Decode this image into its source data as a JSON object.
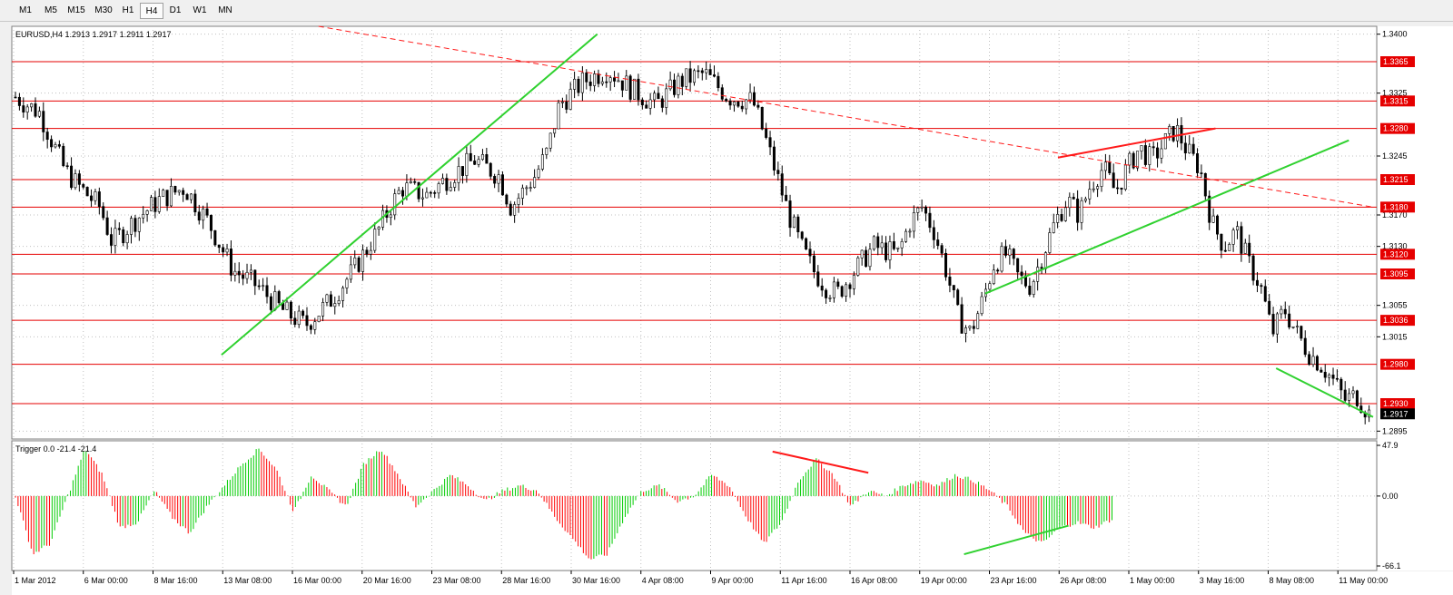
{
  "toolbar": {
    "timeframes": [
      "M1",
      "M5",
      "M15",
      "M30",
      "H1",
      "H4",
      "D1",
      "W1",
      "MN"
    ],
    "active": "H4"
  },
  "main_header": "EURUSD,H4  1.2913 1.2917 1.2911 1.2917",
  "indicator_header": "Trigger 0.0 -21.4 -21.4",
  "colors": {
    "background": "#ffffff",
    "grid": "#c0c0c0",
    "level_line": "#e60000",
    "trend_green": "#2fd12f",
    "trend_red": "#ff1a1a",
    "candle": "#000000",
    "hist_green": "#00cc00",
    "hist_red": "#ff0000",
    "last_price_bg": "#000000"
  },
  "chart_data": [
    {
      "type": "candlestick",
      "symbol": "EURUSD",
      "timeframe": "H4",
      "ohlc_header": [
        1.2913,
        1.2917,
        1.2911,
        1.2917
      ],
      "ylim": [
        1.2885,
        1.341
      ],
      "y_ticks": [
        1.34,
        1.3325,
        1.3245,
        1.317,
        1.313,
        1.3055,
        1.3015,
        1.2895
      ],
      "x_tick_labels": [
        "1 Mar 2012",
        "6 Mar 00:00",
        "8 Mar 16:00",
        "13 Mar 08:00",
        "16 Mar 00:00",
        "20 Mar 16:00",
        "23 Mar 08:00",
        "28 Mar 16:00",
        "30 Mar 16:00",
        "4 Apr 08:00",
        "9 Apr 00:00",
        "11 Apr 16:00",
        "16 Apr 08:00",
        "19 Apr 00:00",
        "23 Apr 16:00",
        "26 Apr 08:00",
        "1 May 00:00",
        "3 May 16:00",
        "8 May 08:00",
        "11 May 00:00"
      ],
      "horizontal_levels": [
        "1.3365",
        "1.3315",
        "1.3280",
        "1.3215",
        "1.3180",
        "1.3120",
        "1.3095",
        "1.3036",
        "1.2980",
        "1.2930"
      ],
      "last_price": "1.2917",
      "close_path": [
        [
          0,
          1.332
        ],
        [
          2,
          1.33
        ],
        [
          4,
          1.323
        ],
        [
          5,
          1.321
        ],
        [
          7,
          1.318
        ],
        [
          8,
          1.3135
        ],
        [
          10,
          1.3165
        ],
        [
          12,
          1.319
        ],
        [
          14,
          1.3205
        ],
        [
          16,
          1.316
        ],
        [
          18,
          1.31
        ],
        [
          20,
          1.308
        ],
        [
          22,
          1.305
        ],
        [
          24,
          1.303
        ],
        [
          26,
          1.306
        ],
        [
          28,
          1.31
        ],
        [
          30,
          1.315
        ],
        [
          31,
          1.318
        ],
        [
          32,
          1.3205
        ],
        [
          34,
          1.3195
        ],
        [
          36,
          1.322
        ],
        [
          38,
          1.324
        ],
        [
          40,
          1.322
        ],
        [
          41,
          1.318
        ],
        [
          43,
          1.322
        ],
        [
          44,
          1.325
        ],
        [
          45,
          1.331
        ],
        [
          47,
          1.334
        ],
        [
          49,
          1.3355
        ],
        [
          51,
          1.333
        ],
        [
          53,
          1.331
        ],
        [
          55,
          1.334
        ],
        [
          57,
          1.335
        ],
        [
          59,
          1.332
        ],
        [
          61,
          1.3315
        ],
        [
          62,
          1.327
        ],
        [
          63,
          1.322
        ],
        [
          64,
          1.317
        ],
        [
          65,
          1.313
        ],
        [
          66,
          1.31
        ],
        [
          67,
          1.308
        ],
        [
          68,
          1.307
        ],
        [
          69,
          1.309
        ],
        [
          70,
          1.311
        ],
        [
          71,
          1.313
        ],
        [
          73,
          1.312
        ],
        [
          74,
          1.316
        ],
        [
          75,
          1.318
        ],
        [
          76,
          1.315
        ],
        [
          77,
          1.31
        ],
        [
          78,
          1.304
        ],
        [
          79,
          1.302
        ],
        [
          80,
          1.306
        ],
        [
          81,
          1.311
        ],
        [
          82,
          1.312
        ],
        [
          83,
          1.309
        ],
        [
          84,
          1.308
        ],
        [
          85,
          1.312
        ],
        [
          86,
          1.316
        ],
        [
          87,
          1.319
        ],
        [
          88,
          1.317
        ],
        [
          89,
          1.321
        ],
        [
          90,
          1.323
        ],
        [
          91,
          1.32
        ],
        [
          92,
          1.323
        ],
        [
          93,
          1.3255
        ],
        [
          94,
          1.324
        ],
        [
          95,
          1.326
        ],
        [
          96,
          1.328
        ],
        [
          97,
          1.325
        ],
        [
          98,
          1.323
        ],
        [
          99,
          1.316
        ],
        [
          100,
          1.313
        ],
        [
          101,
          1.315
        ],
        [
          102,
          1.311
        ],
        [
          103,
          1.308
        ],
        [
          104,
          1.302
        ],
        [
          105,
          1.305
        ],
        [
          106,
          1.302
        ],
        [
          107,
          1.2995
        ],
        [
          108,
          1.298
        ],
        [
          109,
          1.296
        ],
        [
          110,
          1.2935
        ],
        [
          111,
          1.294
        ],
        [
          112,
          1.2917
        ]
      ],
      "trendlines": [
        {
          "color": "green",
          "style": "solid",
          "from": [
            17,
            1.2992
          ],
          "to": [
            48,
            1.34
          ]
        },
        {
          "color": "green",
          "style": "solid",
          "from": [
            80,
            1.307
          ],
          "to": [
            110,
            1.3265
          ]
        },
        {
          "color": "green",
          "style": "solid",
          "from": [
            104,
            1.2975
          ],
          "to": [
            112,
            1.2913
          ]
        },
        {
          "color": "red",
          "style": "solid",
          "from": [
            86,
            1.3243
          ],
          "to": [
            99,
            1.328
          ]
        },
        {
          "color": "red",
          "style": "dashed",
          "from": [
            25,
            1.341
          ],
          "to": [
            112,
            1.318
          ]
        }
      ]
    },
    {
      "type": "histogram",
      "name": "Trigger",
      "values_header": [
        0.0,
        -21.4,
        -21.4
      ],
      "ylim": [
        -66.1,
        47.9
      ],
      "y_ticks": [
        47.9,
        0.0,
        -66.1
      ],
      "zero_line": 0.0,
      "wave": [
        [
          0,
          0
        ],
        [
          2,
          -55
        ],
        [
          4,
          -45
        ],
        [
          6,
          0
        ],
        [
          8,
          45
        ],
        [
          10,
          20
        ],
        [
          12,
          -30
        ],
        [
          14,
          -25
        ],
        [
          16,
          5
        ],
        [
          18,
          -20
        ],
        [
          20,
          -35
        ],
        [
          22,
          -10
        ],
        [
          24,
          10
        ],
        [
          26,
          30
        ],
        [
          28,
          45
        ],
        [
          30,
          25
        ],
        [
          32,
          -15
        ],
        [
          34,
          20
        ],
        [
          36,
          5
        ],
        [
          38,
          -10
        ],
        [
          40,
          30
        ],
        [
          42,
          45
        ],
        [
          44,
          20
        ],
        [
          46,
          -10
        ],
        [
          48,
          5
        ],
        [
          50,
          20
        ],
        [
          52,
          10
        ],
        [
          54,
          -5
        ],
        [
          56,
          5
        ],
        [
          58,
          10
        ],
        [
          60,
          5
        ],
        [
          62,
          -20
        ],
        [
          64,
          -40
        ],
        [
          66,
          -60
        ],
        [
          68,
          -55
        ],
        [
          70,
          -20
        ],
        [
          72,
          5
        ],
        [
          74,
          10
        ],
        [
          76,
          -5
        ],
        [
          78,
          0
        ],
        [
          80,
          20
        ],
        [
          82,
          10
        ],
        [
          84,
          -20
        ],
        [
          86,
          -45
        ],
        [
          88,
          -25
        ],
        [
          90,
          15
        ],
        [
          92,
          35
        ],
        [
          94,
          20
        ],
        [
          96,
          -10
        ],
        [
          98,
          5
        ],
        [
          100,
          0
        ],
        [
          102,
          10
        ],
        [
          104,
          15
        ],
        [
          106,
          10
        ],
        [
          108,
          20
        ],
        [
          110,
          15
        ],
        [
          112,
          5
        ],
        [
          114,
          -10
        ],
        [
          116,
          -35
        ],
        [
          118,
          -45
        ],
        [
          120,
          -30
        ],
        [
          122,
          -25
        ],
        [
          124,
          -30
        ],
        [
          126,
          -22
        ]
      ],
      "trendlines": [
        {
          "color": "red",
          "from": [
            87,
            42
          ],
          "to": [
            98,
            22
          ]
        },
        {
          "color": "green",
          "from": [
            109,
            -55
          ],
          "to": [
            121,
            -28
          ]
        }
      ]
    }
  ]
}
